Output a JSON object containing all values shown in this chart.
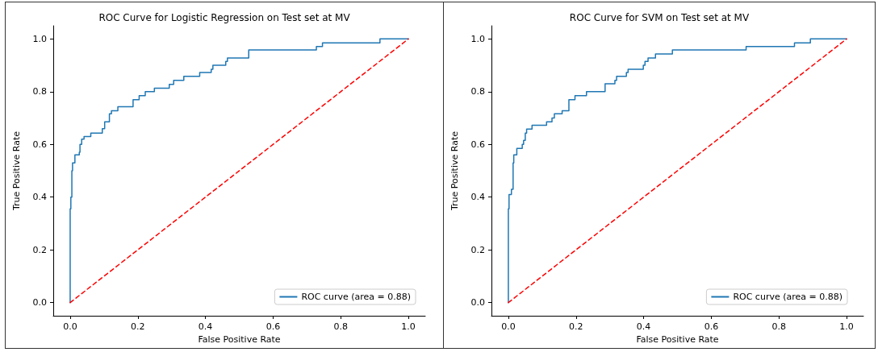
{
  "chart_data": [
    {
      "type": "line",
      "title": "ROC Curve for Logistic Regression on Test set at MV",
      "xlabel": "False Positive Rate",
      "ylabel": "True Positive Rate",
      "xlim": [
        -0.05,
        1.05
      ],
      "ylim": [
        -0.05,
        1.05
      ],
      "xticks": [
        {
          "value": 0,
          "label": "0.0"
        },
        {
          "value": 0.2,
          "label": "0.2"
        },
        {
          "value": 0.4,
          "label": "0.4"
        },
        {
          "value": 0.6,
          "label": "0.6"
        },
        {
          "value": 0.8,
          "label": "0.8"
        },
        {
          "value": 1,
          "label": "1.0"
        }
      ],
      "yticks": [
        {
          "value": 0,
          "label": "0.0"
        },
        {
          "value": 0.2,
          "label": "0.2"
        },
        {
          "value": 0.4,
          "label": "0.4"
        },
        {
          "value": 0.6,
          "label": "0.6"
        },
        {
          "value": 0.8,
          "label": "0.8"
        },
        {
          "value": 1,
          "label": "1.0"
        }
      ],
      "grid": false,
      "legend": "bottom right",
      "series": [
        {
          "name": "ROC curve (area = 0.88)",
          "color": "#1f77b4",
          "line_style": "solid",
          "x": [
            0,
            0,
            0.002,
            0.002,
            0.005,
            0.005,
            0.007,
            0.007,
            0.014,
            0.014,
            0.027,
            0.027,
            0.029,
            0.029,
            0.034,
            0.034,
            0.041,
            0.041,
            0.061,
            0.061,
            0.095,
            0.095,
            0.102,
            0.102,
            0.116,
            0.116,
            0.122,
            0.122,
            0.141,
            0.141,
            0.186,
            0.186,
            0.204,
            0.204,
            0.222,
            0.222,
            0.249,
            0.249,
            0.293,
            0.293,
            0.306,
            0.306,
            0.336,
            0.336,
            0.383,
            0.383,
            0.417,
            0.417,
            0.422,
            0.422,
            0.46,
            0.46,
            0.465,
            0.465,
            0.528,
            0.528,
            0.728,
            0.728,
            0.746,
            0.746,
            0.916,
            0.916,
            1
          ],
          "values": [
            0,
            0.356,
            0.356,
            0.4,
            0.4,
            0.5,
            0.5,
            0.53,
            0.53,
            0.56,
            0.56,
            0.57,
            0.57,
            0.6,
            0.6,
            0.62,
            0.62,
            0.63,
            0.63,
            0.643,
            0.643,
            0.66,
            0.66,
            0.686,
            0.686,
            0.716,
            0.716,
            0.728,
            0.728,
            0.743,
            0.743,
            0.77,
            0.77,
            0.785,
            0.785,
            0.8,
            0.8,
            0.813,
            0.813,
            0.828,
            0.828,
            0.843,
            0.843,
            0.858,
            0.858,
            0.873,
            0.873,
            0.885,
            0.885,
            0.9,
            0.9,
            0.915,
            0.915,
            0.928,
            0.928,
            0.958,
            0.958,
            0.971,
            0.971,
            0.985,
            0.985,
            1,
            1
          ]
        },
        {
          "color": "#ff0000",
          "line_style": "dashed",
          "x": [
            0,
            1
          ],
          "values": [
            0,
            1
          ]
        }
      ]
    },
    {
      "type": "line",
      "title": "ROC Curve for SVM on Test set at MV",
      "xlabel": "False Positive Rate",
      "ylabel": "True Positive Rate",
      "xlim": [
        -0.05,
        1.05
      ],
      "ylim": [
        -0.05,
        1.05
      ],
      "xticks": [
        {
          "value": 0,
          "label": "0.0"
        },
        {
          "value": 0.2,
          "label": "0.2"
        },
        {
          "value": 0.4,
          "label": "0.4"
        },
        {
          "value": 0.6,
          "label": "0.6"
        },
        {
          "value": 0.8,
          "label": "0.8"
        },
        {
          "value": 1,
          "label": "1.0"
        }
      ],
      "yticks": [
        {
          "value": 0,
          "label": "0.0"
        },
        {
          "value": 0.2,
          "label": "0.2"
        },
        {
          "value": 0.4,
          "label": "0.4"
        },
        {
          "value": 0.6,
          "label": "0.6"
        },
        {
          "value": 0.8,
          "label": "0.8"
        },
        {
          "value": 1,
          "label": "1.0"
        }
      ],
      "grid": false,
      "legend": "bottom right",
      "series": [
        {
          "name": "ROC curve (area = 0.88)",
          "color": "#1f77b4",
          "line_style": "solid",
          "x": [
            0,
            0,
            0.002,
            0.002,
            0.009,
            0.009,
            0.014,
            0.014,
            0.016,
            0.016,
            0.025,
            0.025,
            0.041,
            0.041,
            0.045,
            0.045,
            0.05,
            0.05,
            0.054,
            0.054,
            0.07,
            0.07,
            0.113,
            0.113,
            0.129,
            0.129,
            0.136,
            0.136,
            0.159,
            0.159,
            0.179,
            0.179,
            0.197,
            0.197,
            0.231,
            0.231,
            0.286,
            0.286,
            0.315,
            0.315,
            0.32,
            0.32,
            0.349,
            0.349,
            0.354,
            0.354,
            0.399,
            0.399,
            0.404,
            0.404,
            0.413,
            0.413,
            0.435,
            0.435,
            0.485,
            0.485,
            0.703,
            0.703,
            0.846,
            0.846,
            0.893,
            0.893,
            1
          ],
          "values": [
            0,
            0.356,
            0.356,
            0.41,
            0.41,
            0.43,
            0.43,
            0.53,
            0.53,
            0.56,
            0.56,
            0.585,
            0.585,
            0.6,
            0.6,
            0.615,
            0.615,
            0.643,
            0.643,
            0.658,
            0.658,
            0.673,
            0.673,
            0.686,
            0.686,
            0.7,
            0.7,
            0.716,
            0.716,
            0.728,
            0.728,
            0.77,
            0.77,
            0.785,
            0.785,
            0.8,
            0.8,
            0.83,
            0.83,
            0.843,
            0.843,
            0.858,
            0.858,
            0.873,
            0.873,
            0.885,
            0.885,
            0.9,
            0.9,
            0.915,
            0.915,
            0.928,
            0.928,
            0.943,
            0.943,
            0.958,
            0.958,
            0.971,
            0.971,
            0.985,
            0.985,
            1,
            1
          ]
        },
        {
          "color": "#ff0000",
          "line_style": "dashed",
          "x": [
            0,
            1
          ],
          "values": [
            0,
            1
          ]
        }
      ]
    }
  ]
}
